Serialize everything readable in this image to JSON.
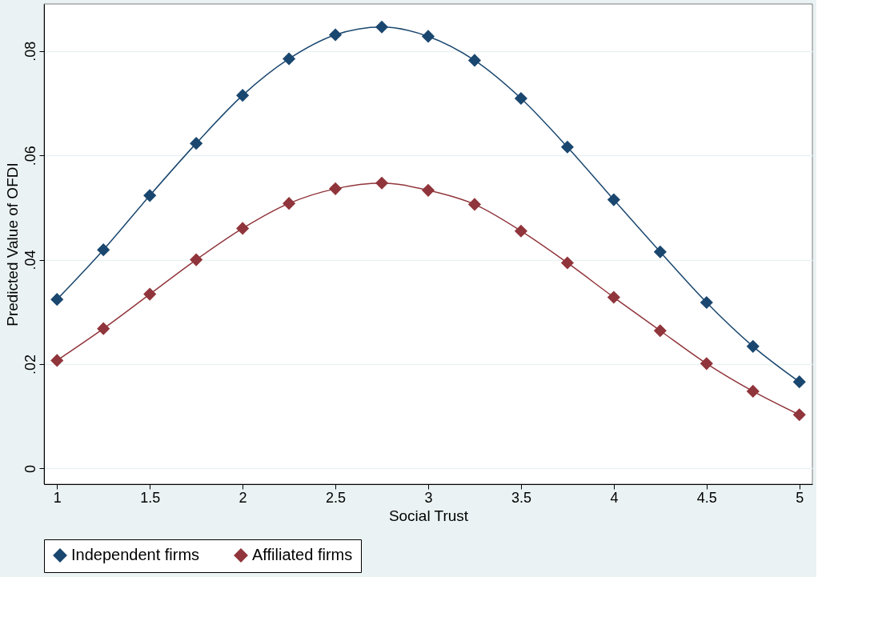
{
  "chart_data": {
    "type": "line",
    "xlabel": "Social Trust",
    "ylabel": "Predicted Value of OFDI",
    "x": [
      1,
      1.25,
      1.5,
      1.75,
      2,
      2.25,
      2.5,
      2.75,
      3,
      3.25,
      3.5,
      3.75,
      4,
      4.25,
      4.5,
      4.75,
      5
    ],
    "series": [
      {
        "name": "Independent firms",
        "color": "#1a476f",
        "values": [
          0.0324,
          0.0419,
          0.0523,
          0.0623,
          0.0715,
          0.0785,
          0.0831,
          0.0846,
          0.0828,
          0.0782,
          0.0709,
          0.0616,
          0.0515,
          0.0415,
          0.0318,
          0.0234,
          0.0166
        ]
      },
      {
        "name": "Affiliated firms",
        "color": "#90353b",
        "values": [
          0.0207,
          0.0268,
          0.0334,
          0.04,
          0.046,
          0.0508,
          0.0536,
          0.0547,
          0.0533,
          0.0506,
          0.0455,
          0.0394,
          0.0328,
          0.0264,
          0.0201,
          0.0148,
          0.0103
        ]
      }
    ],
    "xlim": [
      0.93,
      5.07
    ],
    "xticks": [
      1,
      1.5,
      2,
      2.5,
      3,
      3.5,
      4,
      4.5,
      5
    ],
    "ylim": [
      -0.003,
      0.089
    ],
    "yticks": [
      {
        "value": 0,
        "label": "0"
      },
      {
        "value": 0.02,
        "label": ".02"
      },
      {
        "value": 0.04,
        "label": ".04"
      },
      {
        "value": 0.06,
        "label": ".06"
      },
      {
        "value": 0.08,
        "label": ".08"
      }
    ],
    "grid": "y",
    "legend": "bottom",
    "marker": "diamond",
    "line_style": "solid"
  }
}
